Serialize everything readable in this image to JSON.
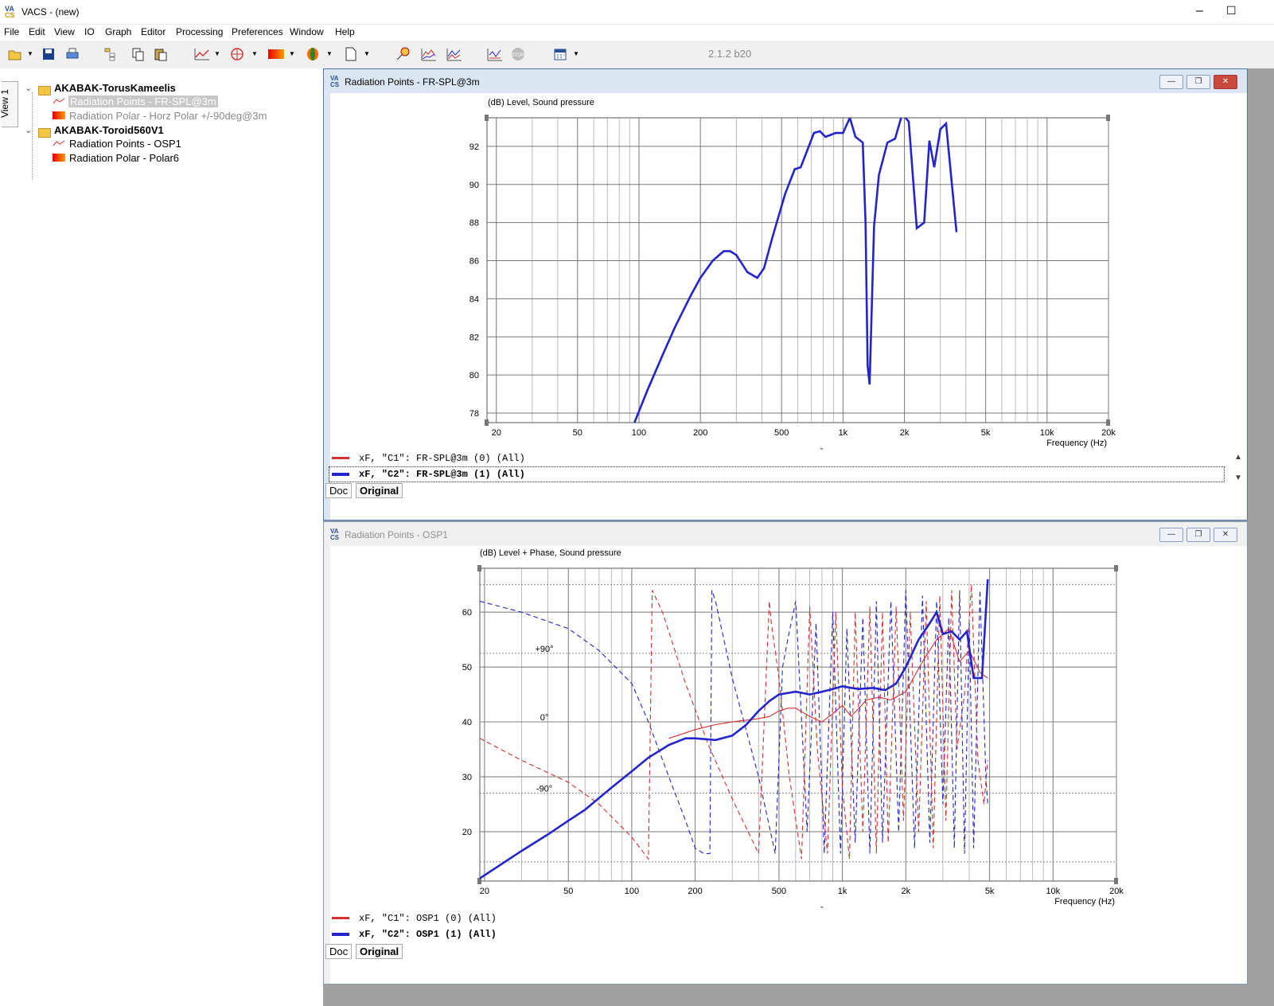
{
  "window": {
    "title": "VACS - (new)",
    "min": "–",
    "max": "☐"
  },
  "menu": [
    "File",
    "Edit",
    "View",
    "IO",
    "Graph",
    "Editor",
    "Processing",
    "Preferences",
    "Window",
    "Help"
  ],
  "toolbar": {
    "version": "2.1.2 b20",
    "icons": [
      "open-folder-icon",
      "save-icon",
      "print-icon",
      "tree-icon",
      "copy-icon",
      "paste-icon",
      "line-graph-icon",
      "polar-graph-icon",
      "color-map-icon",
      "balloon-icon",
      "new-document-icon",
      "mic-icon",
      "spl-graph-icon",
      "waterfall-icon",
      "chart-options-icon",
      "stop-icon",
      "calendar-icon"
    ]
  },
  "tree": {
    "tab": "View 1",
    "roots": [
      {
        "label": "AKABAK-TorusKameelis",
        "children": [
          {
            "label": "Radiation Points - FR-SPL@3m",
            "type": "points",
            "selected": true
          },
          {
            "label": "Radiation Polar - Horz Polar +/-90deg@3m",
            "type": "polar"
          }
        ]
      },
      {
        "label": "AKABAK-Toroid560V1",
        "children": [
          {
            "label": "Radiation Points - OSP1",
            "type": "points"
          },
          {
            "label": "Radiation Polar - Polar6",
            "type": "polar"
          }
        ]
      }
    ]
  },
  "panel1": {
    "title": "Radiation Points - FR-SPL@3m",
    "ylabel": "(dB)  Level, Sound pressure",
    "xlabel": "Frequency  (Hz)",
    "ticks_x": [
      "20",
      "50",
      "100",
      "200",
      "500",
      "1k",
      "2k",
      "5k",
      "10k",
      "20k"
    ],
    "ticks_y": [
      "78",
      "80",
      "82",
      "84",
      "86",
      "88",
      "90",
      "92"
    ],
    "legend": [
      {
        "text": "xF, \"C1\": FR-SPL@3m (0)  (All)",
        "color": "#d23030",
        "bold": false
      },
      {
        "text": "xF, \"C2\": FR-SPL@3m (1)  (All)",
        "color": "#2424cc",
        "bold": true
      }
    ],
    "tabs": [
      "Doc",
      "Original"
    ],
    "scroll_mark": "ˇ"
  },
  "panel2": {
    "title": "Radiation Points - OSP1",
    "ylabel": "(dB)  Level + Phase, Sound pressure",
    "xlabel": "Frequency  (Hz)",
    "ticks_x": [
      "20",
      "50",
      "100",
      "200",
      "500",
      "1k",
      "2k",
      "5k",
      "10k",
      "20k"
    ],
    "ticks_y": [
      "20",
      "30",
      "40",
      "50",
      "60"
    ],
    "phase_labels": [
      "+90°",
      "0°",
      "-90°"
    ],
    "legend": [
      {
        "text": "xF, \"C1\": OSP1 (0)  (All)",
        "color": "#d23030",
        "bold": false
      },
      {
        "text": "xF, \"C2\": OSP1 (1)  (All)",
        "color": "#2424cc",
        "bold": true
      }
    ],
    "tabs": [
      "Doc",
      "Original"
    ],
    "scroll_mark": "ˇ"
  },
  "chart_data": [
    {
      "type": "line",
      "title": "Radiation Points - FR-SPL@3m",
      "xlabel": "Frequency  (Hz)",
      "ylabel": "(dB)  Level, Sound pressure",
      "xscale": "log",
      "xlim": [
        18,
        20000
      ],
      "ylim": [
        77.5,
        93.5
      ],
      "grid": true,
      "series": [
        {
          "name": "xF, \"C2\": FR-SPL@3m (1)  (All)",
          "color": "#2424cc",
          "x": [
            95,
            110,
            130,
            150,
            180,
            200,
            230,
            260,
            280,
            300,
            340,
            380,
            410,
            450,
            520,
            580,
            620,
            680,
            720,
            770,
            820,
            870,
            920,
            1000,
            1080,
            1150,
            1250,
            1290,
            1320,
            1350,
            1420,
            1500,
            1650,
            1800,
            1950,
            2100,
            2300,
            2500,
            2650,
            2800,
            3000,
            3200,
            3600
          ],
          "y": [
            77.5,
            79.2,
            81,
            82.5,
            84.2,
            85.1,
            86,
            86.5,
            86.5,
            86.3,
            85.4,
            85.1,
            85.6,
            87.2,
            89.5,
            90.8,
            90.9,
            92,
            92.7,
            92.8,
            92.5,
            92.6,
            92.7,
            92.7,
            93.5,
            92.5,
            92.2,
            88,
            80.5,
            79.5,
            87.8,
            90.5,
            92.2,
            92.4,
            93.7,
            93.3,
            87.7,
            88,
            92.3,
            90.9,
            92.9,
            93.2,
            87.5
          ]
        }
      ]
    },
    {
      "type": "line",
      "title": "Radiation Points - OSP1",
      "xlabel": "Frequency  (Hz)",
      "ylabel": "(dB)  Level + Phase, Sound pressure",
      "xscale": "log",
      "xlim": [
        19,
        20000
      ],
      "ylim": [
        11,
        68
      ],
      "grid": true,
      "series": [
        {
          "name": "xF, \"C2\": OSP1 (1)  (All)",
          "color": "#2424cc",
          "style": "solid-thick",
          "x": [
            19,
            25,
            30,
            40,
            50,
            60,
            80,
            100,
            120,
            150,
            180,
            200,
            250,
            300,
            350,
            400,
            450,
            500,
            600,
            700,
            800,
            900,
            1000,
            1100,
            1200,
            1400,
            1600,
            1800,
            2000,
            2300,
            2600,
            2800,
            3000,
            3300,
            3600,
            3900,
            4200,
            4600,
            4900
          ],
          "y": [
            11.5,
            14.5,
            16.5,
            19.5,
            22,
            24,
            28,
            31,
            33.5,
            35.8,
            37,
            37,
            36.7,
            37.5,
            39.5,
            42,
            43.8,
            45,
            45.5,
            45,
            45.5,
            46,
            46.5,
            46.2,
            46,
            46.2,
            45.8,
            47,
            50,
            55,
            58,
            60,
            56,
            56.5,
            55,
            56.5,
            48,
            48,
            66
          ]
        },
        {
          "name": "xF, \"C1\": OSP1 (0)  (All)",
          "color": "#d23030",
          "style": "solid-thin",
          "x": [
            150,
            180,
            200,
            250,
            300,
            400,
            450,
            500,
            550,
            600,
            700,
            800,
            900,
            1000,
            1100,
            1300,
            1500,
            1700,
            2000,
            2400,
            2800,
            3200,
            3600,
            4000,
            4500,
            4900
          ],
          "y": [
            37,
            38,
            38.6,
            39.5,
            40,
            40.6,
            41,
            42,
            42.5,
            42.5,
            41,
            40,
            41.5,
            43,
            41,
            44,
            44.5,
            44,
            45.5,
            51,
            55,
            57,
            51,
            53,
            49,
            48
          ]
        },
        {
          "name": "phase C1",
          "color": "#d23030",
          "style": "dashed",
          "x": [
            19,
            30,
            50,
            70,
            100,
            120,
            125,
            140,
            180,
            230,
            300,
            400,
            450,
            460,
            500,
            560,
            640,
            700,
            760,
            850,
            930,
            1000,
            1080,
            1150,
            1250,
            1350,
            1450,
            1550,
            1650,
            1800,
            1950,
            2100,
            2300,
            2500,
            2700,
            2900,
            3100,
            3300,
            3500,
            3800,
            4100,
            4400,
            4700,
            4900
          ],
          "y": [
            37,
            33,
            29,
            25,
            19,
            15,
            64,
            60,
            47,
            36,
            26,
            16,
            62,
            58,
            48,
            30,
            15,
            61,
            35,
            16,
            60,
            28,
            15,
            60,
            20,
            61,
            16,
            60,
            18,
            61,
            22,
            60,
            20,
            62,
            17,
            63,
            22,
            64,
            35,
            45,
            65,
            33,
            25,
            33
          ]
        },
        {
          "name": "phase C2",
          "color": "#2424cc",
          "style": "dashed",
          "x": [
            19,
            30,
            50,
            70,
            100,
            120,
            150,
            180,
            200,
            220,
            235,
            240,
            250,
            300,
            400,
            480,
            520,
            550,
            600,
            680,
            750,
            820,
            900,
            980,
            1050,
            1150,
            1250,
            1350,
            1450,
            1550,
            1700,
            1850,
            2000,
            2200,
            2400,
            2600,
            2800,
            3000,
            3200,
            3400,
            3600,
            3800,
            4000,
            4200,
            4500,
            4800,
            4900
          ],
          "y": [
            62,
            60,
            57,
            53,
            47,
            40,
            30,
            22,
            17,
            16,
            16,
            64,
            62,
            48,
            30,
            16,
            50,
            55,
            62,
            20,
            58,
            16,
            60,
            16,
            57,
            18,
            59,
            16,
            62,
            18,
            62,
            20,
            64,
            17,
            63,
            18,
            62,
            25,
            59,
            17,
            64,
            16,
            58,
            17,
            64,
            30,
            25
          ]
        }
      ]
    }
  ]
}
